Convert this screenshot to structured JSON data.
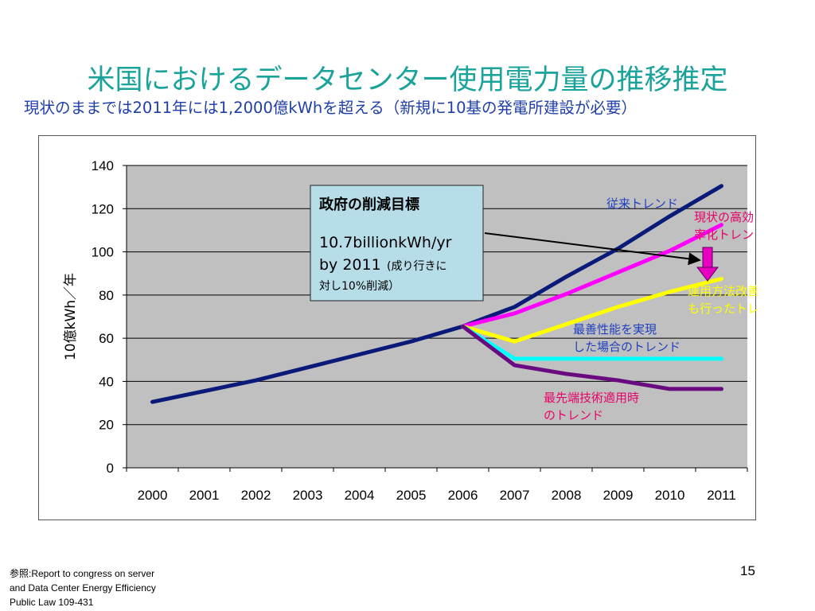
{
  "slide": {
    "title": "米国におけるデータセンター使用電力量の推移推定",
    "subtitle": "現状のままでは2011年には1,2000億kWhを超える（新規に10基の発電所建設が必要）",
    "footnote": [
      "参照:Report to congress on server",
      "and Data Center Energy Efficiency",
      "Public Law 109-431"
    ],
    "page_number": "15"
  },
  "chart_data": {
    "type": "line",
    "categories": [
      "2000",
      "2001",
      "2002",
      "2003",
      "2004",
      "2005",
      "2006",
      "2007",
      "2008",
      "2009",
      "2010",
      "2011"
    ],
    "ylabel": "10億kWh／年",
    "ylim": [
      0,
      140
    ],
    "yticks": [
      0,
      20,
      40,
      60,
      80,
      100,
      120,
      140
    ],
    "grid": true,
    "plot_background": "#c0c0c0",
    "series": [
      {
        "name": "従来トレンド",
        "color": "#0a1a78",
        "label_color": "#1f3fbf",
        "values": [
          30.5,
          35.5,
          40.5,
          46.5,
          52.5,
          58.5,
          65.5,
          74.5,
          88.5,
          101.5,
          116.5,
          130.5
        ]
      },
      {
        "name": "現状の高効率化トレンド",
        "color": "#ff00ff",
        "label_color": "#e8006a",
        "values": [
          null,
          null,
          null,
          null,
          null,
          null,
          65.5,
          71.5,
          80.5,
          90.5,
          100.5,
          112.5
        ]
      },
      {
        "name": "運用方法改善も行ったトレンド",
        "color": "#ffff00",
        "label_color": "#ffff00",
        "values": [
          null,
          null,
          null,
          null,
          null,
          null,
          65.5,
          58.5,
          66.5,
          74.5,
          81.5,
          87.5
        ]
      },
      {
        "name": "最善性能を実現した場合のトレンド",
        "color": "#00ffff",
        "label_color": "#1f3fbf",
        "values": [
          null,
          null,
          null,
          null,
          null,
          null,
          65.5,
          50.5,
          50.5,
          50.5,
          50.5,
          50.5
        ]
      },
      {
        "name": "最先端技術適用時のトレンド",
        "color": "#6a0a80",
        "label_color": "#e8006a",
        "values": [
          null,
          null,
          null,
          null,
          null,
          null,
          65.5,
          47.5,
          43.5,
          40.5,
          36.5,
          36.5
        ]
      }
    ],
    "annotation": {
      "title": "政府の削減目標",
      "line1": "10.7billionkWh/yr",
      "line2a": "by 2011",
      "line2b": "(成り行きに",
      "line3": "対し10%削減）",
      "background": "#b7dde8"
    }
  }
}
